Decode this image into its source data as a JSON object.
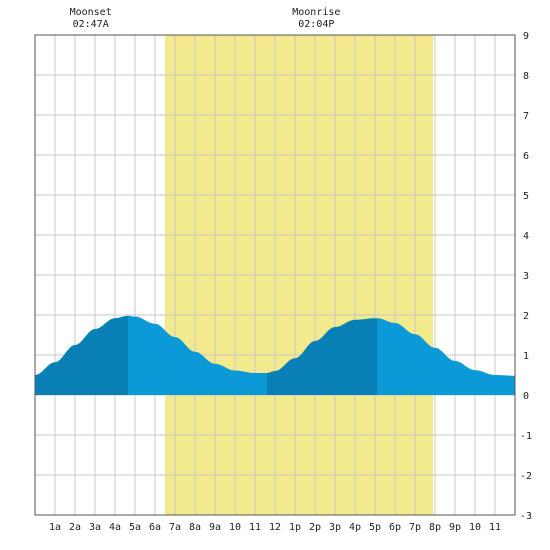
{
  "chart_data": {
    "type": "area",
    "events": [
      {
        "label": "Moonset",
        "time": "02:47A",
        "hour": 2.783
      },
      {
        "label": "Moonrise",
        "time": "02:04P",
        "hour": 14.067
      }
    ],
    "x_tick_labels": [
      "1a",
      "2a",
      "3a",
      "4a",
      "5a",
      "6a",
      "7a",
      "8a",
      "9a",
      "10",
      "11",
      "12",
      "1p",
      "2p",
      "3p",
      "4p",
      "5p",
      "6p",
      "7p",
      "8p",
      "9p",
      "10",
      "11"
    ],
    "x_range_hours": [
      0,
      24
    ],
    "y_tick_labels": [
      "-3",
      "-2",
      "-1",
      "0",
      "1",
      "2",
      "3",
      "4",
      "5",
      "6",
      "7",
      "8",
      "9"
    ],
    "ylim": [
      -3,
      9
    ],
    "grid": true,
    "daylight_hours": [
      6.5,
      19.9
    ],
    "series": [
      {
        "x": [
          0,
          1,
          2,
          3,
          4,
          4.65,
          5,
          6,
          7,
          8,
          9,
          10,
          11,
          11.6,
          12,
          13,
          14,
          15,
          16,
          17,
          17.1,
          18,
          19,
          20,
          21,
          22,
          23,
          24
        ],
        "values": [
          0.5,
          0.82,
          1.25,
          1.65,
          1.92,
          1.98,
          1.96,
          1.78,
          1.45,
          1.08,
          0.78,
          0.61,
          0.55,
          0.55,
          0.6,
          0.92,
          1.35,
          1.7,
          1.88,
          1.92,
          1.92,
          1.8,
          1.52,
          1.18,
          0.85,
          0.62,
          0.5,
          0.48
        ]
      }
    ],
    "tide_peaks": [
      {
        "type": "high",
        "hour": 4.65
      },
      {
        "type": "low",
        "hour": 11.6
      },
      {
        "type": "high",
        "hour": 17.1
      }
    ],
    "colors": {
      "daylight": "#f2ea8c",
      "tide_light": "#0b99d8",
      "tide_dark": "#0880b6",
      "grid": "#c8c8c8",
      "axis": "#555555"
    }
  }
}
